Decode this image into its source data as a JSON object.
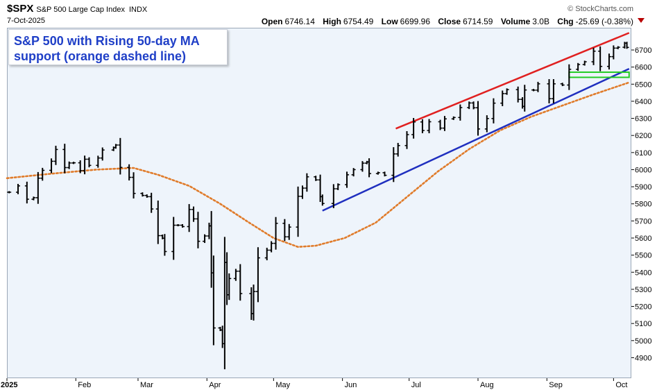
{
  "header": {
    "symbol": "$SPX",
    "name": "S&P 500 Large Cap Index",
    "exchange": "INDX",
    "date": "7-Oct-2025",
    "brand": "© StockCharts.com",
    "open_label": "Open",
    "open": "6746.14",
    "high_label": "High",
    "high": "6754.49",
    "low_label": "Low",
    "low": "6699.96",
    "close_label": "Close",
    "close": "6714.59",
    "volume_label": "Volume",
    "volume": "3.0B",
    "chg_label": "Chg",
    "chg": "-25.69 (-0.38%)"
  },
  "annotation": {
    "line1": "S&P 500 with Rising 50-day MA",
    "line2": "support (orange dashed line)"
  },
  "colors": {
    "plot_bg": "#eef4fb",
    "bars": "#000000",
    "ma50": "#e07b2a",
    "upper_trend": "#e02020",
    "lower_trend": "#1f2fbf",
    "support_box": "#22cc22",
    "annotation_text": "#1f3fc7"
  },
  "chart_data": {
    "type": "ohlc",
    "title": "",
    "x_labels": [
      "2025",
      "Feb",
      "Mar",
      "Apr",
      "May",
      "Jun",
      "Jul",
      "Aug",
      "Sep",
      "Oct"
    ],
    "x_label_dates": [
      "2025-01-01",
      "2025-02-01",
      "2025-03-01",
      "2025-04-01",
      "2025-05-01",
      "2025-06-01",
      "2025-07-01",
      "2025-08-01",
      "2025-09-01",
      "2025-10-01"
    ],
    "x_range": [
      "2025-01-01",
      "2025-10-09"
    ],
    "y_ticks": [
      4900,
      5000,
      5100,
      5200,
      5300,
      5400,
      5500,
      5600,
      5700,
      5800,
      5900,
      6000,
      6100,
      6200,
      6300,
      6400,
      6500,
      6600,
      6700
    ],
    "ylim": [
      4780,
      6830
    ],
    "grid": false,
    "series": [
      {
        "name": "",
        "kind": "close-approx",
        "points": [
          [
            "2025-01-02",
            5868
          ],
          [
            "2025-01-06",
            5905
          ],
          [
            "2025-01-10",
            5827
          ],
          [
            "2025-01-13",
            5836
          ],
          [
            "2025-01-15",
            5950
          ],
          [
            "2025-01-17",
            5996
          ],
          [
            "2025-01-21",
            6049
          ],
          [
            "2025-01-23",
            6118
          ],
          [
            "2025-01-27",
            6012
          ],
          [
            "2025-01-29",
            6039
          ],
          [
            "2025-01-31",
            6040
          ],
          [
            "2025-02-03",
            5994
          ],
          [
            "2025-02-05",
            6061
          ],
          [
            "2025-02-07",
            6025
          ],
          [
            "2025-02-11",
            6068
          ],
          [
            "2025-02-13",
            6115
          ],
          [
            "2025-02-18",
            6129
          ],
          [
            "2025-02-19",
            6144
          ],
          [
            "2025-02-21",
            6013
          ],
          [
            "2025-02-25",
            5955
          ],
          [
            "2025-02-27",
            5861
          ],
          [
            "2025-03-03",
            5849
          ],
          [
            "2025-03-05",
            5842
          ],
          [
            "2025-03-07",
            5770
          ],
          [
            "2025-03-10",
            5614
          ],
          [
            "2025-03-12",
            5599
          ],
          [
            "2025-03-13",
            5521
          ],
          [
            "2025-03-17",
            5675
          ],
          [
            "2025-03-19",
            5675
          ],
          [
            "2025-03-21",
            5667
          ],
          [
            "2025-03-24",
            5767
          ],
          [
            "2025-03-26",
            5712
          ],
          [
            "2025-03-28",
            5581
          ],
          [
            "2025-03-31",
            5612
          ],
          [
            "2025-04-02",
            5671
          ],
          [
            "2025-04-03",
            5396
          ],
          [
            "2025-04-04",
            5074
          ],
          [
            "2025-04-07",
            5062
          ],
          [
            "2025-04-08",
            4982
          ],
          [
            "2025-04-09",
            5457
          ],
          [
            "2025-04-10",
            5268
          ],
          [
            "2025-04-11",
            5363
          ],
          [
            "2025-04-14",
            5406
          ],
          [
            "2025-04-16",
            5275
          ],
          [
            "2025-04-21",
            5158
          ],
          [
            "2025-04-22",
            5287
          ],
          [
            "2025-04-24",
            5484
          ],
          [
            "2025-04-28",
            5529
          ],
          [
            "2025-04-30",
            5569
          ],
          [
            "2025-05-02",
            5686
          ],
          [
            "2025-05-06",
            5607
          ],
          [
            "2025-05-08",
            5664
          ],
          [
            "2025-05-12",
            5844
          ],
          [
            "2025-05-14",
            5892
          ],
          [
            "2025-05-16",
            5958
          ],
          [
            "2025-05-20",
            5940
          ],
          [
            "2025-05-22",
            5842
          ],
          [
            "2025-05-23",
            5802
          ],
          [
            "2025-05-28",
            5888
          ],
          [
            "2025-05-30",
            5912
          ],
          [
            "2025-06-03",
            5970
          ],
          [
            "2025-06-06",
            6000
          ],
          [
            "2025-06-10",
            6038
          ],
          [
            "2025-06-12",
            6045
          ],
          [
            "2025-06-13",
            5977
          ],
          [
            "2025-06-17",
            5982
          ],
          [
            "2025-06-20",
            5967
          ],
          [
            "2025-06-24",
            6092
          ],
          [
            "2025-06-26",
            6141
          ],
          [
            "2025-06-30",
            6205
          ],
          [
            "2025-07-03",
            6279
          ],
          [
            "2025-07-07",
            6229
          ],
          [
            "2025-07-10",
            6280
          ],
          [
            "2025-07-15",
            6243
          ],
          [
            "2025-07-17",
            6297
          ],
          [
            "2025-07-21",
            6305
          ],
          [
            "2025-07-24",
            6363
          ],
          [
            "2025-07-28",
            6390
          ],
          [
            "2025-07-30",
            6362
          ],
          [
            "2025-08-01",
            6238
          ],
          [
            "2025-08-05",
            6299
          ],
          [
            "2025-08-08",
            6389
          ],
          [
            "2025-08-12",
            6445
          ],
          [
            "2025-08-14",
            6468
          ],
          [
            "2025-08-19",
            6411
          ],
          [
            "2025-08-21",
            6370
          ],
          [
            "2025-08-22",
            6466
          ],
          [
            "2025-08-26",
            6465
          ],
          [
            "2025-08-28",
            6502
          ],
          [
            "2025-09-02",
            6415
          ],
          [
            "2025-09-04",
            6502
          ],
          [
            "2025-09-08",
            6495
          ],
          [
            "2025-09-11",
            6587
          ],
          [
            "2025-09-15",
            6615
          ],
          [
            "2025-09-18",
            6631
          ],
          [
            "2025-09-22",
            6693
          ],
          [
            "2025-09-25",
            6604
          ],
          [
            "2025-09-29",
            6661
          ],
          [
            "2025-10-01",
            6711
          ],
          [
            "2025-10-03",
            6716
          ],
          [
            "2025-10-06",
            6740
          ],
          [
            "2025-10-07",
            6715
          ]
        ]
      },
      {
        "name": "50-day MA",
        "kind": "line-dashed",
        "points": [
          [
            "2025-01-01",
            5950
          ],
          [
            "2025-01-20",
            5975
          ],
          [
            "2025-02-10",
            6000
          ],
          [
            "2025-02-27",
            6010
          ],
          [
            "2025-03-10",
            5970
          ],
          [
            "2025-03-24",
            5905
          ],
          [
            "2025-04-07",
            5800
          ],
          [
            "2025-04-20",
            5690
          ],
          [
            "2025-05-01",
            5600
          ],
          [
            "2025-05-12",
            5548
          ],
          [
            "2025-05-20",
            5555
          ],
          [
            "2025-06-02",
            5600
          ],
          [
            "2025-06-16",
            5690
          ],
          [
            "2025-06-30",
            5840
          ],
          [
            "2025-07-14",
            5990
          ],
          [
            "2025-07-28",
            6120
          ],
          [
            "2025-08-11",
            6230
          ],
          [
            "2025-08-25",
            6310
          ],
          [
            "2025-09-08",
            6375
          ],
          [
            "2025-09-22",
            6440
          ],
          [
            "2025-10-08",
            6510
          ]
        ]
      },
      {
        "name": "",
        "kind": "trendline",
        "points": [
          [
            "2025-05-23",
            5760
          ],
          [
            "2025-10-08",
            6590
          ]
        ]
      },
      {
        "name": "",
        "kind": "trendline",
        "points": [
          [
            "2025-06-25",
            6240
          ],
          [
            "2025-10-08",
            6800
          ]
        ]
      }
    ],
    "support_box": {
      "x": [
        "2025-09-11",
        "2025-10-08"
      ],
      "y": [
        6540,
        6570
      ]
    }
  }
}
